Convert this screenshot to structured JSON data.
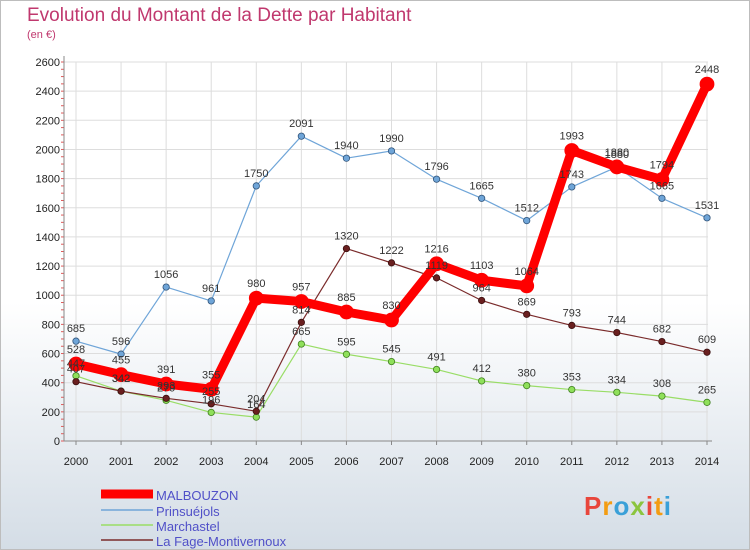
{
  "header": {
    "title": "Evolution du Montant de la Dette par Habitant",
    "subtitle": "(en €)"
  },
  "brand": {
    "logo_text": "Proxiti"
  },
  "chart_data": {
    "type": "line",
    "title": "Evolution du Montant de la Dette par Habitant",
    "subtitle": "(en €)",
    "xlabel": "",
    "ylabel": "",
    "ylim": [
      0,
      2600
    ],
    "yticks": [
      0,
      200,
      400,
      600,
      800,
      1000,
      1200,
      1400,
      1600,
      1800,
      2000,
      2200,
      2400,
      2600
    ],
    "x": [
      "2000",
      "2001",
      "2002",
      "2003",
      "2004",
      "2005",
      "2006",
      "2007",
      "2008",
      "2009",
      "2010",
      "2011",
      "2012",
      "2013",
      "2014"
    ],
    "grid": true,
    "legend_position": "bottom-left",
    "series": [
      {
        "name": "MALBOUZON",
        "color": "#ff0000",
        "values": [
          528,
          455,
          391,
          355,
          980,
          957,
          885,
          830,
          1216,
          1103,
          1064,
          1993,
          1880,
          1794,
          2448
        ]
      },
      {
        "name": "Prinsuéjols",
        "color": "#6fa5d8",
        "values": [
          685,
          596,
          1056,
          961,
          1750,
          2091,
          1940,
          1990,
          1796,
          1665,
          1512,
          1743,
          1880,
          1665,
          1531
        ]
      },
      {
        "name": "Marchastel",
        "color": "#99dd66",
        "values": [
          447,
          342,
          279,
          196,
          164,
          665,
          595,
          545,
          491,
          412,
          380,
          353,
          334,
          308,
          265
        ]
      },
      {
        "name": "La Fage-Montivernoux",
        "color": "#7a2b2b",
        "values": [
          407,
          342,
          293,
          255,
          204,
          814,
          1320,
          1222,
          1119,
          964,
          869,
          793,
          744,
          682,
          609
        ]
      }
    ]
  }
}
